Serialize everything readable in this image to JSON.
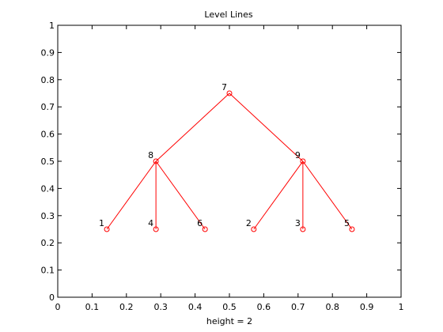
{
  "chart_data": {
    "type": "scatter",
    "title": "Level Lines",
    "xlabel": "height = 2",
    "ylabel": "",
    "xlim": [
      0,
      1
    ],
    "ylim": [
      0,
      1
    ],
    "x_ticks": [
      0,
      0.1,
      0.2,
      0.3,
      0.4,
      0.5,
      0.6,
      0.7,
      0.8,
      0.9,
      1
    ],
    "x_tick_labels": [
      "0",
      "0.1",
      "0.2",
      "0.3",
      "0.4",
      "0.5",
      "0.6",
      "0.7",
      "0.8",
      "0.9",
      "1"
    ],
    "y_ticks": [
      0,
      0.1,
      0.2,
      0.3,
      0.4,
      0.5,
      0.6,
      0.7,
      0.8,
      0.9,
      1
    ],
    "y_tick_labels": [
      "0",
      "0.1",
      "0.2",
      "0.3",
      "0.4",
      "0.5",
      "0.6",
      "0.7",
      "0.8",
      "0.9",
      "1"
    ],
    "grid": false,
    "color": "#ff0000",
    "nodes": [
      {
        "id": "1",
        "x": 0.143,
        "y": 0.25
      },
      {
        "id": "4",
        "x": 0.286,
        "y": 0.25
      },
      {
        "id": "6",
        "x": 0.429,
        "y": 0.25
      },
      {
        "id": "2",
        "x": 0.571,
        "y": 0.25
      },
      {
        "id": "3",
        "x": 0.714,
        "y": 0.25
      },
      {
        "id": "5",
        "x": 0.857,
        "y": 0.25
      },
      {
        "id": "8",
        "x": 0.286,
        "y": 0.5
      },
      {
        "id": "9",
        "x": 0.714,
        "y": 0.5
      },
      {
        "id": "7",
        "x": 0.5,
        "y": 0.75
      }
    ],
    "edges": [
      [
        "7",
        "8"
      ],
      [
        "7",
        "9"
      ],
      [
        "8",
        "1"
      ],
      [
        "8",
        "4"
      ],
      [
        "8",
        "6"
      ],
      [
        "9",
        "2"
      ],
      [
        "9",
        "3"
      ],
      [
        "9",
        "5"
      ]
    ]
  }
}
